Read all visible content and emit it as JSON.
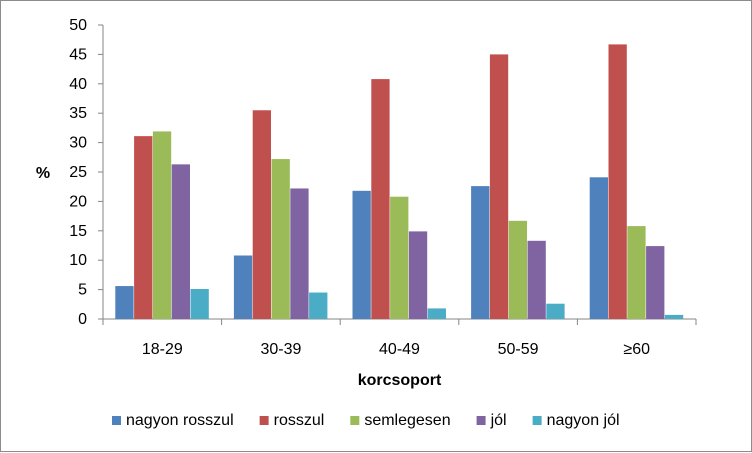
{
  "chart_data": {
    "type": "bar",
    "xlabel": "korcsoport",
    "ylabel": "%",
    "ylim": [
      0,
      50
    ],
    "yticks": [
      0,
      5,
      10,
      15,
      20,
      25,
      30,
      35,
      40,
      45,
      50
    ],
    "grid": false,
    "legend_position": "bottom",
    "categories": [
      "18-29",
      "30-39",
      "40-49",
      "50-59",
      "≥60"
    ],
    "series": [
      {
        "name": "nagyon rosszul",
        "color": "#4F81BD",
        "values": [
          5.6,
          10.8,
          21.8,
          22.6,
          24.1
        ]
      },
      {
        "name": "rosszul",
        "color": "#C0504D",
        "values": [
          31.1,
          35.5,
          40.8,
          45.0,
          46.7
        ]
      },
      {
        "name": "semlegesen",
        "color": "#9BBB59",
        "values": [
          31.9,
          27.2,
          20.8,
          16.7,
          15.8
        ]
      },
      {
        "name": "jól",
        "color": "#8064A2",
        "values": [
          26.3,
          22.2,
          14.9,
          13.3,
          12.4
        ]
      },
      {
        "name": "nagyon jól",
        "color": "#4BACC6",
        "values": [
          5.1,
          4.5,
          1.8,
          2.6,
          0.7
        ]
      }
    ]
  }
}
